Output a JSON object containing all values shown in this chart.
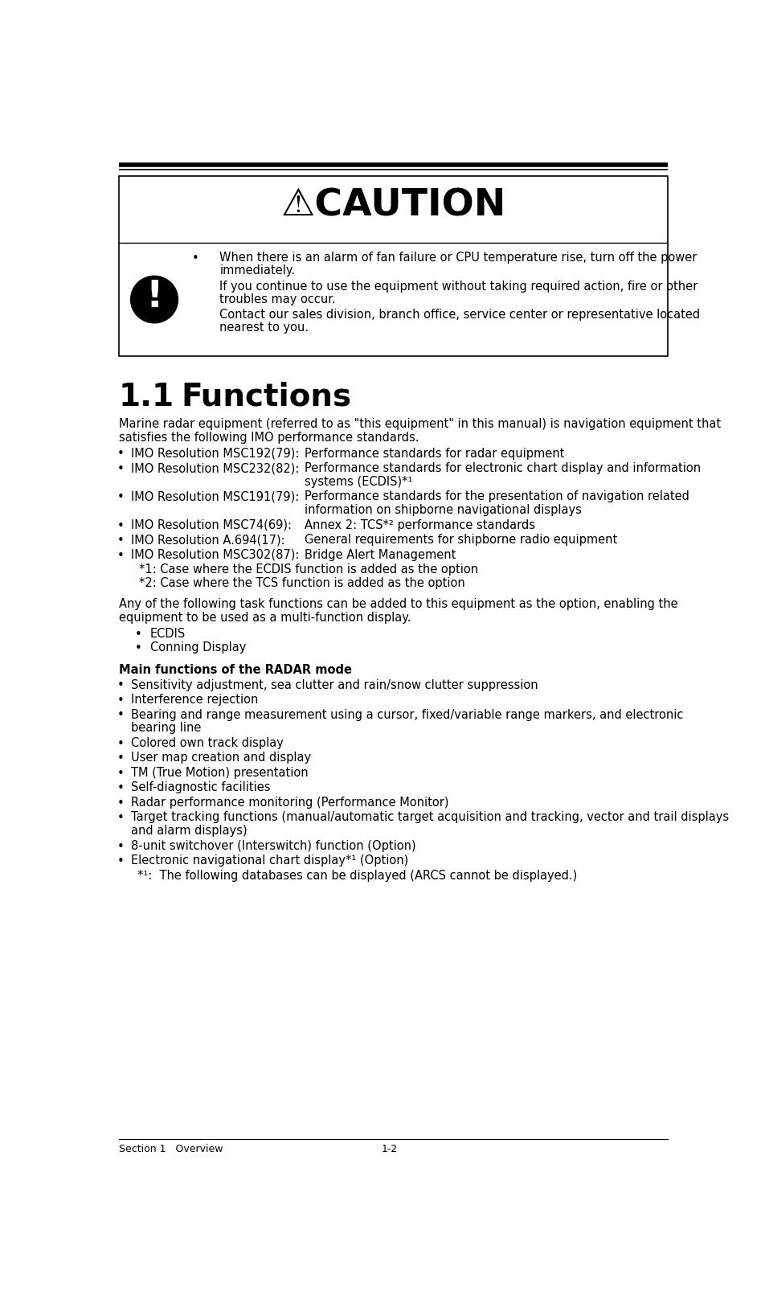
{
  "bg_color": "#ffffff",
  "text_color": "#000000",
  "caution_title": "⚠CAUTION",
  "warn_line1a": "When there is an alarm of fan failure or CPU temperature rise, turn off the power",
  "warn_line1b": "immediately.",
  "warn_line2a": "If you continue to use the equipment without taking required action, fire or other",
  "warn_line2b": "troubles may occur.",
  "warn_line3a": "Contact our sales division, branch office, service center or representative located",
  "warn_line3b": "nearest to you.",
  "section_num": "1.1",
  "section_title": "Functions",
  "intro_line1": "Marine radar equipment (referred to as \"this equipment\" in this manual) is navigation equipment that",
  "intro_line2": "satisfies the following IMO performance standards.",
  "imo_items": [
    {
      "label": "IMO Resolution MSC192(79):",
      "desc1": "Performance standards for radar equipment",
      "desc2": ""
    },
    {
      "label": "IMO Resolution MSC232(82):",
      "desc1": "Performance standards for electronic chart display and information",
      "desc2": "systems (ECDIS)*¹"
    },
    {
      "label": "IMO Resolution MSC191(79):",
      "desc1": "Performance standards for the presentation of navigation related",
      "desc2": "information on shipborne navigational displays"
    },
    {
      "label": "IMO Resolution MSC74(69):",
      "desc1": "Annex 2: TCS*² performance standards",
      "desc2": ""
    },
    {
      "label": "IMO Resolution A.694(17):",
      "desc1": "General requirements for shipborne radio equipment",
      "desc2": ""
    },
    {
      "label": "IMO Resolution MSC302(87):",
      "desc1": "Bridge Alert Management",
      "desc2": ""
    }
  ],
  "imo_note1": "   *1: Case where the ECDIS function is added as the option",
  "imo_note2": "   *2: Case where the TCS function is added as the option",
  "option_intro1": "Any of the following task functions can be added to this equipment as the option, enabling the",
  "option_intro2": "equipment to be used as a multi-function display.",
  "option_items": [
    "ECDIS",
    "Conning Display"
  ],
  "main_func_title": "Main functions of the RADAR mode",
  "main_func_items": [
    {
      "text1": "Sensitivity adjustment, sea clutter and rain/snow clutter suppression",
      "text2": ""
    },
    {
      "text1": "Interference rejection",
      "text2": ""
    },
    {
      "text1": "Bearing and range measurement using a cursor, fixed/variable range markers, and electronic",
      "text2": "bearing line"
    },
    {
      "text1": "Colored own track display",
      "text2": ""
    },
    {
      "text1": "User map creation and display",
      "text2": ""
    },
    {
      "text1": "TM (True Motion) presentation",
      "text2": ""
    },
    {
      "text1": "Self-diagnostic facilities",
      "text2": ""
    },
    {
      "text1": "Radar performance monitoring (Performance Monitor)",
      "text2": ""
    },
    {
      "text1": "Target tracking functions (manual/automatic target acquisition and tracking, vector and trail displays",
      "text2": "and alarm displays)"
    },
    {
      "text1": "8-unit switchover (Interswitch) function (Option)",
      "text2": ""
    },
    {
      "text1": "Electronic navigational chart display*¹ (Option)",
      "text2": ""
    }
  ],
  "footnote_indent": "      *¹:  The following databases can be displayed (ARCS cannot be displayed.)",
  "footer_left": "Section 1   Overview",
  "footer_right": "1-2",
  "fs_body": 10.5,
  "fs_section": 28,
  "fs_caution": 34,
  "fs_footer": 9,
  "lh": 22,
  "lh_tight": 20
}
